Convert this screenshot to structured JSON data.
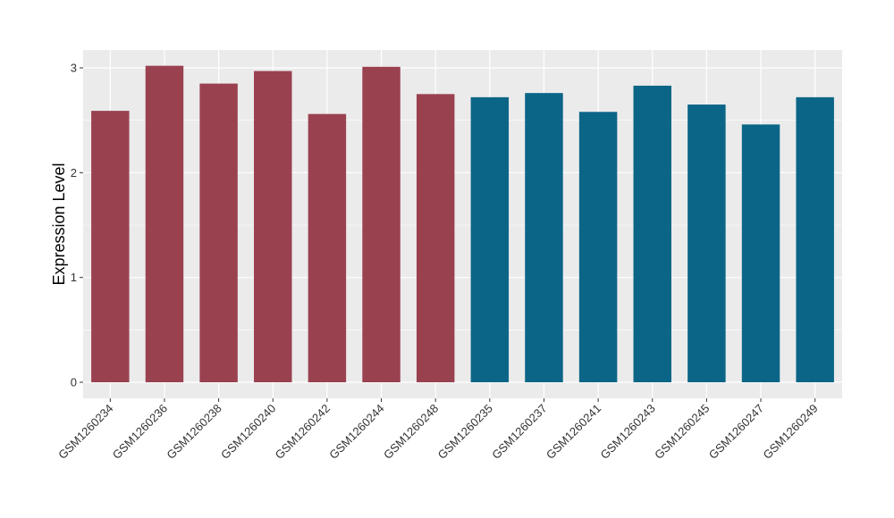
{
  "chart_data": {
    "type": "bar",
    "title": "",
    "xlabel": "",
    "ylabel": "Expression Level",
    "ylim": [
      0,
      3.0
    ],
    "yticks": [
      0,
      1,
      2,
      3
    ],
    "ytick_labels": [
      "0",
      "1",
      "2",
      "3"
    ],
    "grid": true,
    "categories": [
      "GSM1260234",
      "GSM1260236",
      "GSM1260238",
      "GSM1260240",
      "GSM1260242",
      "GSM1260244",
      "GSM1260248",
      "GSM1260235",
      "GSM1260237",
      "GSM1260241",
      "GSM1260243",
      "GSM1260245",
      "GSM1260247",
      "GSM1260249"
    ],
    "values": [
      2.59,
      3.02,
      2.85,
      2.97,
      2.56,
      3.01,
      2.75,
      2.72,
      2.76,
      2.58,
      2.83,
      2.65,
      2.46,
      2.72
    ],
    "colors": [
      "#9a4150",
      "#9a4150",
      "#9a4150",
      "#9a4150",
      "#9a4150",
      "#9a4150",
      "#9a4150",
      "#0b6587",
      "#0b6587",
      "#0b6587",
      "#0b6587",
      "#0b6587",
      "#0b6587",
      "#0b6587"
    ],
    "panel_background": "#ebebeb",
    "grid_color": "#ffffff"
  }
}
